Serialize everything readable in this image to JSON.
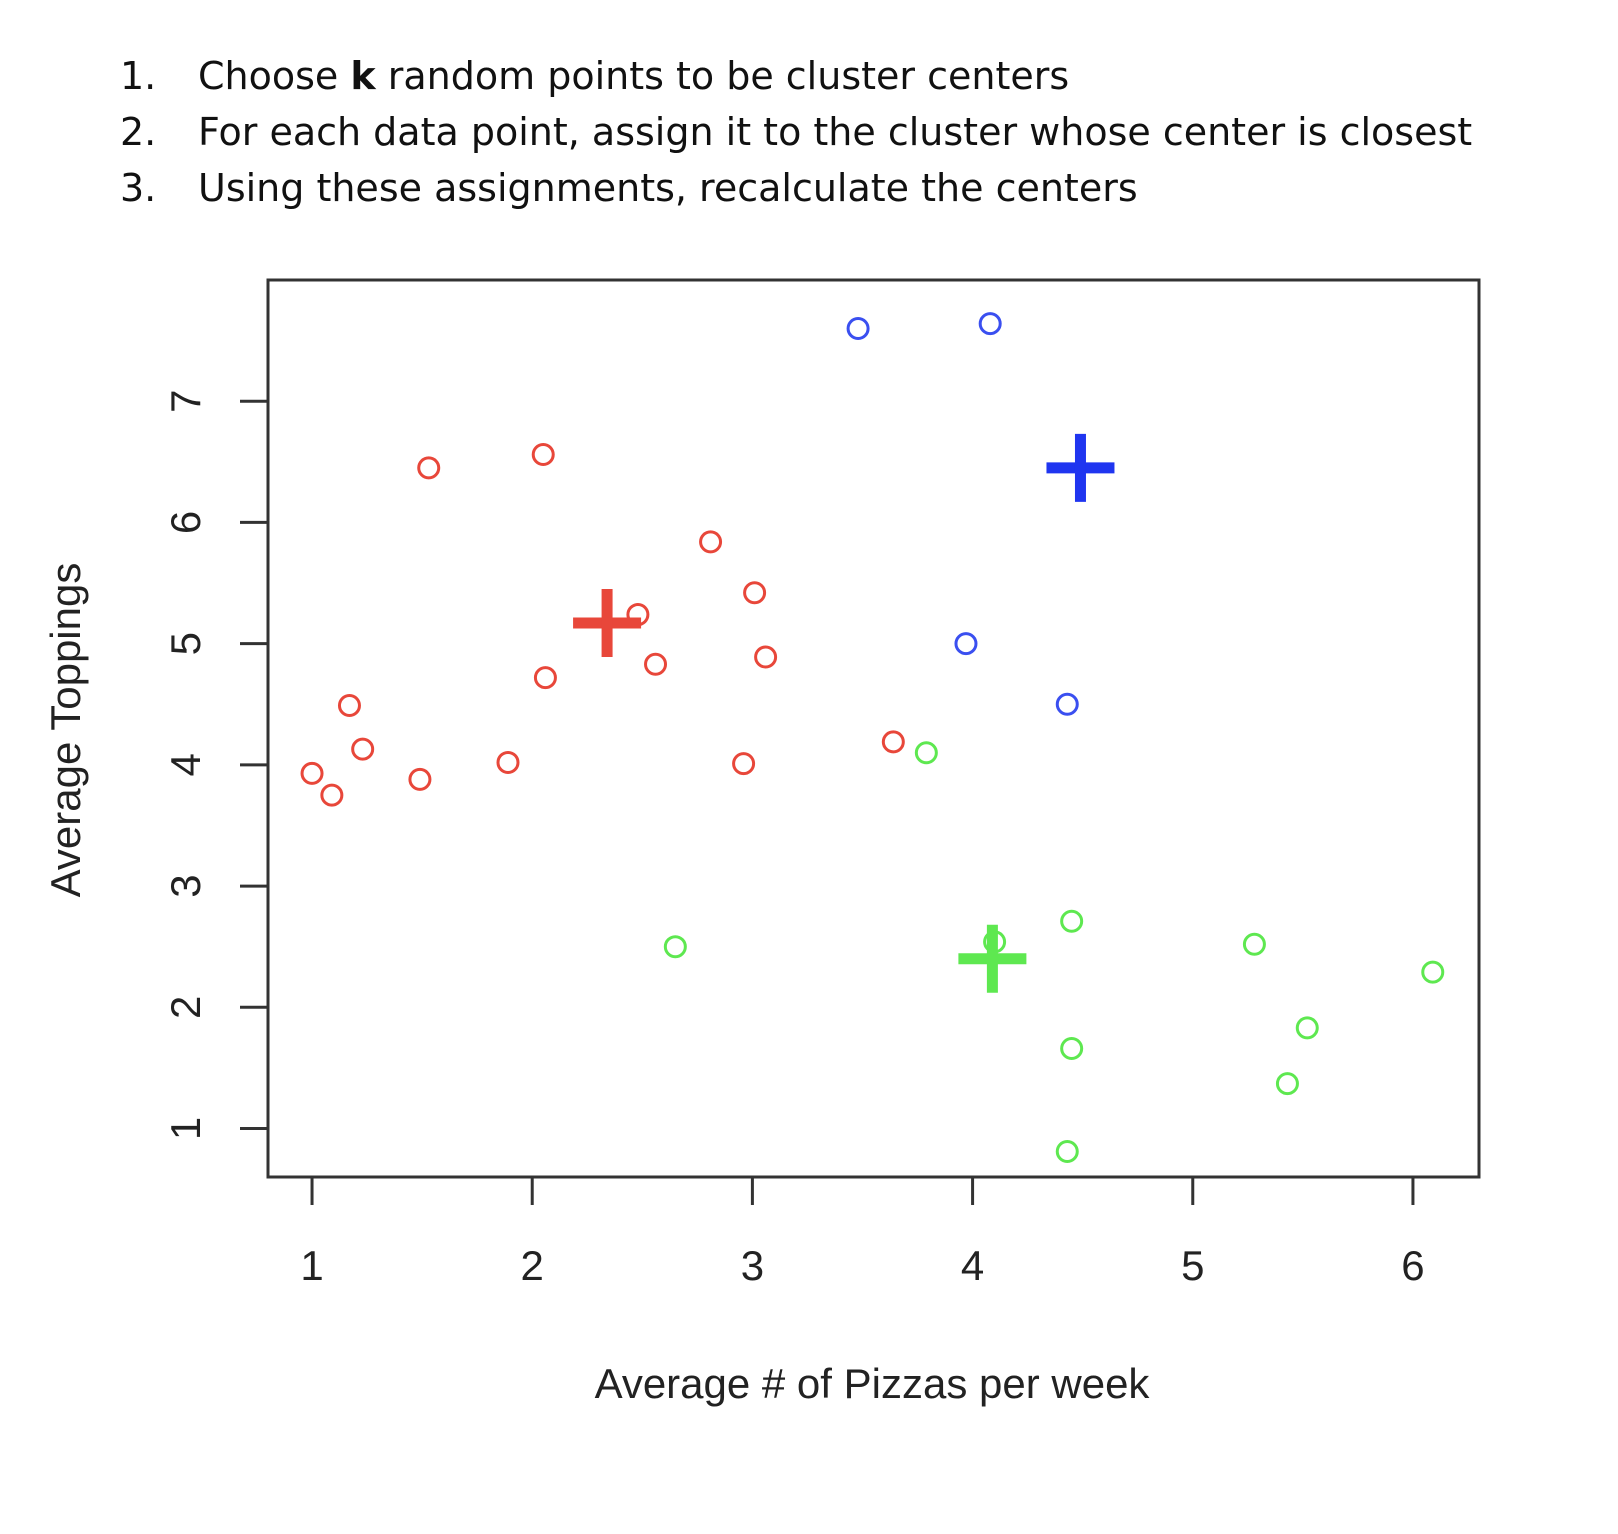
{
  "instructions": [
    {
      "number": "1.",
      "before": "Choose ",
      "bold": "k",
      "after": " random points to be cluster centers"
    },
    {
      "number": "2.",
      "before": "For each data point, assign it to the cluster whose center is closest",
      "bold": "",
      "after": ""
    },
    {
      "number": "3.",
      "before": "Using these assignments, recalculate the centers",
      "bold": "",
      "after": ""
    }
  ],
  "chart_data": {
    "type": "scatter",
    "title": "",
    "xlabel": "Average # of Pizzas per week",
    "ylabel": "Average Toppings",
    "xlim": [
      0.8,
      6.3
    ],
    "ylim": [
      0.6,
      8.0
    ],
    "xticks": [
      1,
      2,
      3,
      4,
      5,
      6
    ],
    "yticks": [
      1,
      2,
      3,
      4,
      5,
      6,
      7
    ],
    "grid": false,
    "legend": "none",
    "series": [
      {
        "color": "#e8473a",
        "marker": "open-circle",
        "points": [
          [
            1.0,
            3.93
          ],
          [
            1.09,
            3.75
          ],
          [
            1.17,
            4.49
          ],
          [
            1.23,
            4.13
          ],
          [
            1.49,
            3.88
          ],
          [
            1.53,
            6.45
          ],
          [
            1.89,
            4.02
          ],
          [
            2.05,
            6.56
          ],
          [
            2.06,
            4.72
          ],
          [
            2.48,
            5.24
          ],
          [
            2.56,
            4.83
          ],
          [
            2.81,
            5.84
          ],
          [
            2.96,
            4.01
          ],
          [
            3.01,
            5.42
          ],
          [
            3.06,
            4.89
          ],
          [
            3.64,
            4.19
          ]
        ]
      },
      {
        "color": "#3a4ff0",
        "marker": "open-circle",
        "points": [
          [
            3.48,
            7.6
          ],
          [
            3.97,
            5.0
          ],
          [
            4.08,
            7.64
          ],
          [
            4.43,
            4.5
          ]
        ]
      },
      {
        "color": "#5ee850",
        "marker": "open-circle",
        "points": [
          [
            2.65,
            2.5
          ],
          [
            3.79,
            4.1
          ],
          [
            4.1,
            2.54
          ],
          [
            4.43,
            0.81
          ],
          [
            4.45,
            2.71
          ],
          [
            4.45,
            1.66
          ],
          [
            5.28,
            2.52
          ],
          [
            5.43,
            1.37
          ],
          [
            5.52,
            1.83
          ],
          [
            6.09,
            2.29
          ]
        ]
      }
    ],
    "centers": [
      {
        "x": 2.34,
        "y": 5.17,
        "color": "#e8473a"
      },
      {
        "x": 4.49,
        "y": 6.45,
        "color": "#1f35f0"
      },
      {
        "x": 4.09,
        "y": 2.4,
        "color": "#5ee850"
      }
    ]
  }
}
